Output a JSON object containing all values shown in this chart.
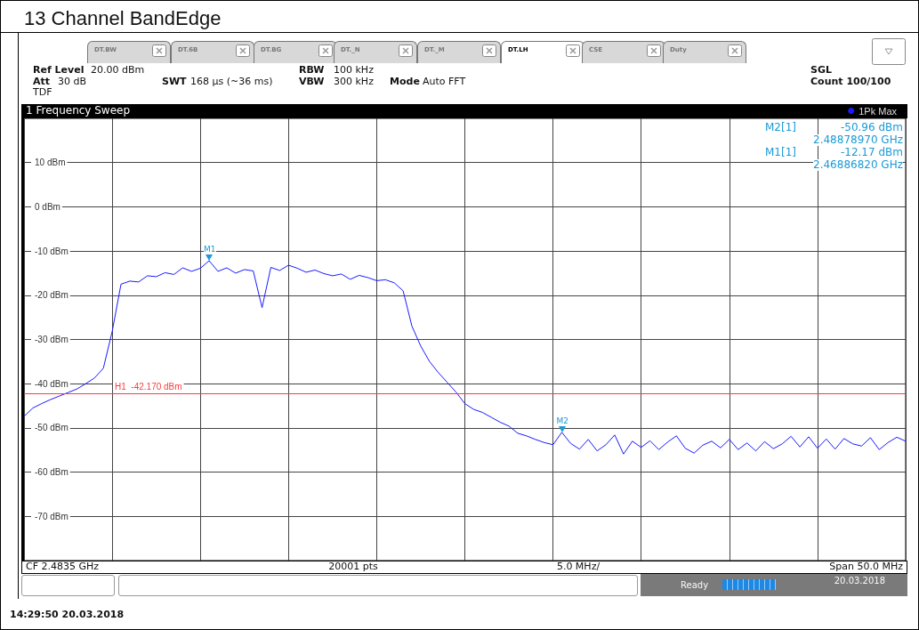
{
  "chart_data": {
    "type": "line",
    "title": "13 Channel BandEdge",
    "series": [
      {
        "name": "1Pk Max",
        "color": "#1a1aff",
        "values": [
          -47.4,
          -45.5,
          -44.5,
          -43.6,
          -42.8,
          -42.0,
          -41.2,
          -40.0,
          -38.7,
          -36.5,
          -28.2,
          -17.5,
          -16.8,
          -17.0,
          -15.6,
          -15.8,
          -14.9,
          -15.3,
          -13.8,
          -14.6,
          -13.9,
          -12.2,
          -14.6,
          -13.8,
          -15.0,
          -14.2,
          -14.5,
          -22.8,
          -13.7,
          -14.4,
          -13.2,
          -13.9,
          -14.8,
          -14.3,
          -15.1,
          -15.6,
          -15.2,
          -16.4,
          -15.5,
          -16.0,
          -16.7,
          -16.5,
          -17.2,
          -19.0,
          -27.0,
          -31.5,
          -35.0,
          -37.5,
          -39.7,
          -41.9,
          -44.5,
          -45.8,
          -46.5,
          -47.6,
          -48.7,
          -49.6,
          -51.2,
          -51.8,
          -52.6,
          -53.3,
          -53.8,
          -51.0,
          -53.5,
          -54.8,
          -52.6,
          -55.2,
          -53.8,
          -51.6,
          -55.9,
          -53.0,
          -54.4,
          -52.9,
          -54.9,
          -53.2,
          -51.8,
          -54.6,
          -55.7,
          -53.9,
          -53.0,
          -54.5,
          -52.6,
          -54.9,
          -53.4,
          -55.2,
          -53.1,
          -54.7,
          -53.6,
          -51.9,
          -54.3,
          -52.0,
          -54.6,
          -52.5,
          -54.8,
          -52.4,
          -53.6,
          -54.1,
          -52.2,
          -54.9,
          -53.3,
          -52.1,
          -53.0
        ]
      }
    ],
    "categories": [
      null,
      null,
      null,
      null,
      null,
      null,
      null,
      null,
      null,
      null,
      null,
      null,
      null,
      null,
      null,
      null,
      null,
      null,
      null,
      null,
      null,
      null,
      null,
      null,
      null,
      null,
      null,
      null,
      null,
      null,
      null,
      null,
      null,
      null,
      null,
      null,
      null,
      null,
      null,
      null,
      null,
      null,
      null,
      null,
      null,
      null,
      null,
      null,
      null,
      null,
      null,
      null,
      null,
      null,
      null,
      null,
      null,
      null,
      null,
      null,
      null,
      null,
      null,
      null,
      null,
      null,
      null,
      null,
      null,
      null,
      null,
      null,
      null,
      null,
      null,
      null,
      null,
      null,
      null,
      null,
      null,
      null,
      null,
      null,
      null,
      null,
      null,
      null,
      null,
      null,
      null,
      null,
      null,
      null,
      null,
      null,
      null,
      null,
      null,
      null,
      null
    ],
    "ylim": [
      -80,
      20
    ],
    "yticks": [
      {
        "value": 10,
        "label": "10 dBm"
      },
      {
        "value": 0,
        "label": "0 dBm"
      },
      {
        "value": -10,
        "label": "-10 dBm"
      },
      {
        "value": -20,
        "label": "-20 dBm"
      },
      {
        "value": -30,
        "label": "-30 dBm"
      },
      {
        "value": -40,
        "label": "-40 dBm"
      },
      {
        "value": -50,
        "label": "-50 dBm"
      },
      {
        "value": -60,
        "label": "-60 dBm"
      },
      {
        "value": -70,
        "label": "-70 dBm"
      }
    ],
    "tick_labels": "y",
    "grid": true,
    "legend": "top right",
    "marker": "none",
    "line_style": "solid",
    "ref_lines": [
      {
        "axis": "y",
        "value": -42.17,
        "label": "H1  -42.170 dBm",
        "color": "#ff3b3b"
      }
    ],
    "annotations": [
      {
        "text": "M1",
        "y": -12.17
      },
      {
        "text": "M2",
        "y": -50.96
      },
      "DT.BW",
      "DT.6B",
      "DT.BG",
      "DT._N",
      "DT._M",
      "DT.LH",
      "CSE",
      "Duty",
      "Ref Level",
      "20.00 dBm",
      "Att",
      "30 dB",
      "SWT",
      "168 µs (~36 ms)",
      "RBW",
      "100 kHz",
      "VBW",
      "300 kHz",
      "Mode",
      "Auto FFT",
      "TDF",
      "SGL",
      "Count 100/100",
      "1 Frequency Sweep",
      "M2[1]",
      "-50.96 dBm",
      "2.48878970 GHz",
      "M1[1]",
      "-12.17 dBm",
      "2.46886820 GHz",
      "CF 2.4835 GHz",
      "20001 pts",
      "5.0 MHz/",
      "Span 50.0 MHz",
      "Ready",
      "20.03.2018",
      "14:29:50  20.03.2018"
    ]
  }
}
